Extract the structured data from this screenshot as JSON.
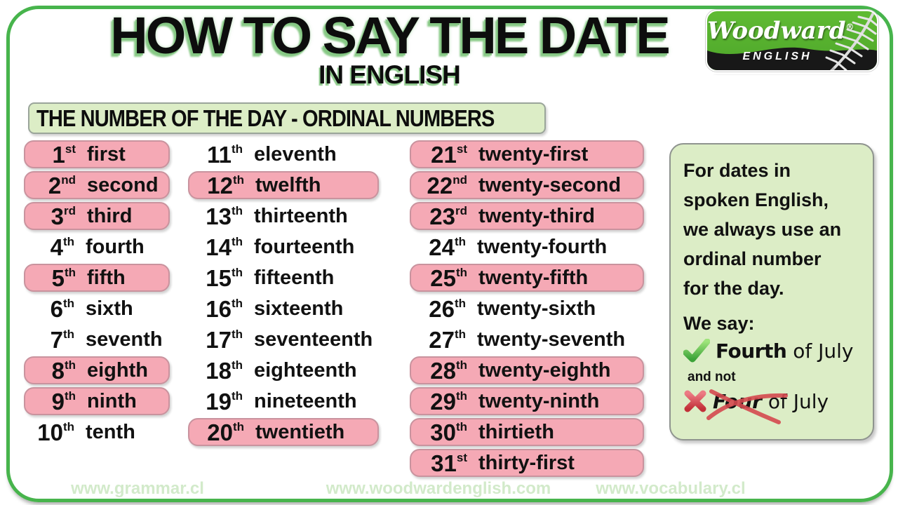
{
  "title": "HOW TO SAY THE DATE",
  "subtitle": "IN ENGLISH",
  "banner": "THE NUMBER OF THE DAY - ORDINAL NUMBERS",
  "logo": {
    "brand": "Woodward",
    "reg": "®",
    "sub": "ENGLISH"
  },
  "columns": [
    {
      "items": [
        {
          "num": "1",
          "suf": "st",
          "word": "first",
          "hl": true
        },
        {
          "num": "2",
          "suf": "nd",
          "word": "second",
          "hl": true
        },
        {
          "num": "3",
          "suf": "rd",
          "word": "third",
          "hl": true
        },
        {
          "num": "4",
          "suf": "th",
          "word": "fourth",
          "hl": false
        },
        {
          "num": "5",
          "suf": "th",
          "word": "fifth",
          "hl": true
        },
        {
          "num": "6",
          "suf": "th",
          "word": "sixth",
          "hl": false
        },
        {
          "num": "7",
          "suf": "th",
          "word": "seventh",
          "hl": false
        },
        {
          "num": "8",
          "suf": "th",
          "word": "eighth",
          "hl": true
        },
        {
          "num": "9",
          "suf": "th",
          "word": "ninth",
          "hl": true
        },
        {
          "num": "10",
          "suf": "th",
          "word": "tenth",
          "hl": false
        }
      ]
    },
    {
      "items": [
        {
          "num": "11",
          "suf": "th",
          "word": "eleventh",
          "hl": false
        },
        {
          "num": "12",
          "suf": "th",
          "word": "twelfth",
          "hl": true
        },
        {
          "num": "13",
          "suf": "th",
          "word": "thirteenth",
          "hl": false
        },
        {
          "num": "14",
          "suf": "th",
          "word": "fourteenth",
          "hl": false
        },
        {
          "num": "15",
          "suf": "th",
          "word": "fifteenth",
          "hl": false
        },
        {
          "num": "16",
          "suf": "th",
          "word": "sixteenth",
          "hl": false
        },
        {
          "num": "17",
          "suf": "th",
          "word": "seventeenth",
          "hl": false
        },
        {
          "num": "18",
          "suf": "th",
          "word": "eighteenth",
          "hl": false
        },
        {
          "num": "19",
          "suf": "th",
          "word": "nineteenth",
          "hl": false
        },
        {
          "num": "20",
          "suf": "th",
          "word": "twentieth",
          "hl": true
        }
      ]
    },
    {
      "items": [
        {
          "num": "21",
          "suf": "st",
          "word": "twenty-first",
          "hl": true
        },
        {
          "num": "22",
          "suf": "nd",
          "word": "twenty-second",
          "hl": true
        },
        {
          "num": "23",
          "suf": "rd",
          "word": "twenty-third",
          "hl": true
        },
        {
          "num": "24",
          "suf": "th",
          "word": "twenty-fourth",
          "hl": false
        },
        {
          "num": "25",
          "suf": "th",
          "word": "twenty-fifth",
          "hl": true
        },
        {
          "num": "26",
          "suf": "th",
          "word": "twenty-sixth",
          "hl": false
        },
        {
          "num": "27",
          "suf": "th",
          "word": "twenty-seventh",
          "hl": false
        },
        {
          "num": "28",
          "suf": "th",
          "word": "twenty-eighth",
          "hl": true
        },
        {
          "num": "29",
          "suf": "th",
          "word": "twenty-ninth",
          "hl": true
        },
        {
          "num": "30",
          "suf": "th",
          "word": "thirtieth",
          "hl": true
        },
        {
          "num": "31",
          "suf": "st",
          "word": "thirty-first",
          "hl": true
        }
      ]
    }
  ],
  "panel": {
    "paragraph_lines": [
      "For dates in",
      "spoken English,",
      "we always use an",
      "ordinal number",
      "for the day."
    ],
    "we_say": "We say:",
    "correct_bold": "Fourth",
    "correct_rest": " of July",
    "and_not": "and not",
    "wrong_italic": "Four",
    "wrong_rest": " of July"
  },
  "footer": [
    "www.grammar.cl",
    "www.woodwardenglish.com",
    "www.vocabulary.cl"
  ],
  "colors": {
    "frame_green": "#47b44c",
    "title_glow_green": "#8cc98c",
    "highlight_pink": "#f5a9b5",
    "highlight_pink_border": "#c9939e",
    "panel_green": "#dcedc6",
    "logo_green": "#55b22d",
    "check_green": "#4db43c",
    "cross_red": "#d5454f",
    "footer_text_green": "#d2eaca"
  }
}
